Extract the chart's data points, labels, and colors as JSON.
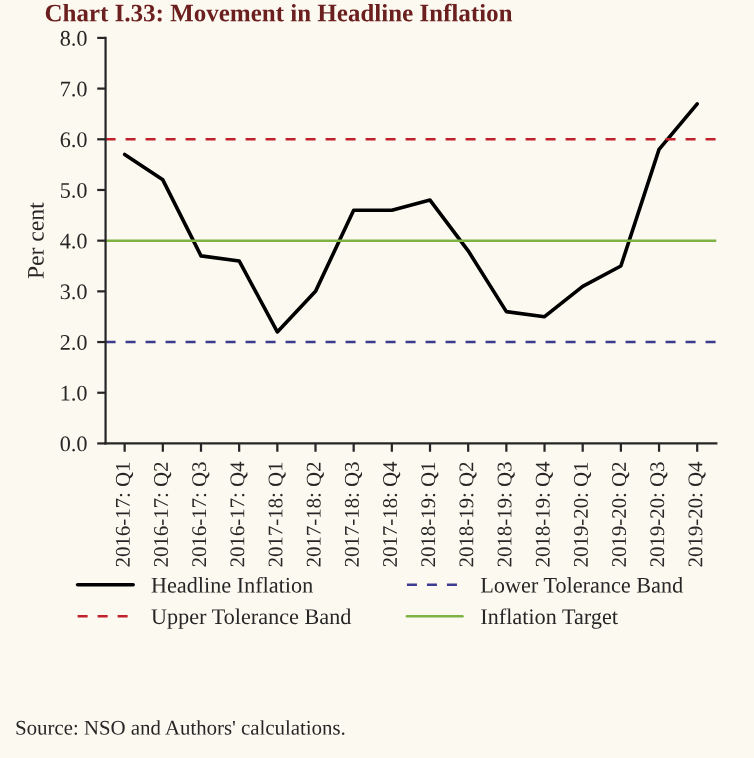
{
  "chart_data": {
    "type": "line",
    "title": "Chart I.33: Movement in Headline Inflation",
    "ylabel": "Per cent",
    "categories": [
      "2016-17: Q1",
      "2016-17: Q2",
      "2016-17: Q3",
      "2016-17: Q4",
      "2017-18: Q1",
      "2017-18: Q2",
      "2017-18: Q3",
      "2017-18: Q4",
      "2018-19: Q1",
      "2018-19: Q2",
      "2018-19: Q3",
      "2018-19: Q4",
      "2019-20: Q1",
      "2019-20: Q2",
      "2019-20: Q3",
      "2019-20: Q4"
    ],
    "series": [
      {
        "name": "Headline Inflation",
        "color": "#000000",
        "values": [
          5.7,
          5.2,
          3.7,
          3.6,
          2.2,
          3.0,
          4.6,
          4.6,
          4.8,
          3.8,
          2.6,
          2.5,
          3.1,
          3.5,
          5.8,
          6.7
        ]
      }
    ],
    "ref_lines": [
      {
        "axis": "y",
        "value": 2,
        "label": "Lower Tolerance Band",
        "color": "#3b3b8f",
        "line_style": "dashed"
      },
      {
        "axis": "y",
        "value": 6,
        "label": "Upper Tolerance Band",
        "color": "#c0202a",
        "line_style": "dashed"
      },
      {
        "axis": "y",
        "value": 4,
        "label": "Inflation Target",
        "color": "#7cb342",
        "line_style": "solid"
      }
    ],
    "ylim": [
      0,
      8
    ],
    "yticks": [
      {
        "value": 0,
        "label": "0.0"
      },
      {
        "value": 1,
        "label": "1.0"
      },
      {
        "value": 2,
        "label": "2.0"
      },
      {
        "value": 3,
        "label": "3.0"
      },
      {
        "value": 4,
        "label": "4.0"
      },
      {
        "value": 5,
        "label": "5.0"
      },
      {
        "value": 6,
        "label": "6.0"
      },
      {
        "value": 7,
        "label": "7.0"
      },
      {
        "value": 8,
        "label": "8.0"
      }
    ],
    "grid": false,
    "legend": "bottom",
    "marker": "none",
    "line_style": "solid",
    "annotations": [
      "Source: NSO and Authors' calculations."
    ]
  }
}
